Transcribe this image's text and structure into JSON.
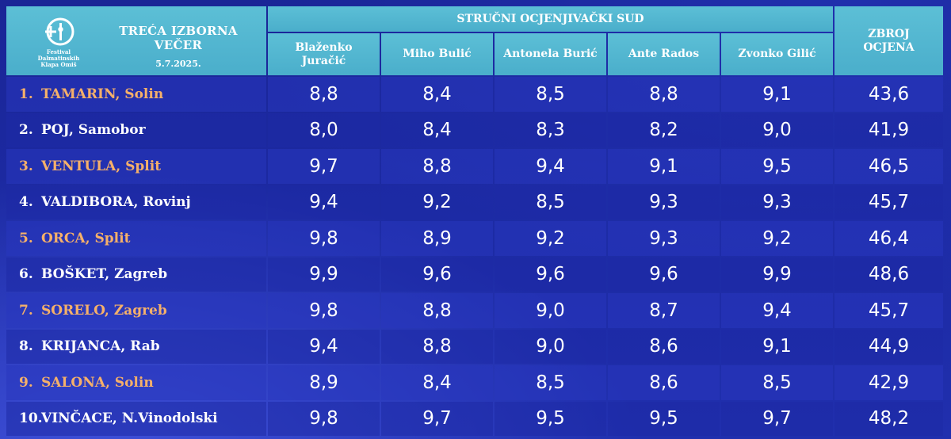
{
  "header": {
    "logo_text": [
      "Festival",
      "Dalmatinskih",
      "Klapa Omiš"
    ],
    "event_title": "TREĆA IZBORNA VEČER",
    "event_date": "5.7.2025.",
    "jury_label": "STRUČNI OCJENJIVAČKI SUD",
    "total_label": [
      "ZBROJ",
      "OCJENA"
    ],
    "judges": [
      [
        "Blaženko",
        "Juračić"
      ],
      [
        "Miho Bulić"
      ],
      [
        "Antonela Burić"
      ],
      [
        "Ante Rados"
      ],
      [
        "Zvonko Gilić"
      ]
    ]
  },
  "rows": [
    {
      "rank": "1.",
      "name": "TAMARIN, Solin",
      "scores": [
        "8,8",
        "8,4",
        "8,5",
        "8,8",
        "9,1"
      ],
      "total": "43,6"
    },
    {
      "rank": "2.",
      "name": "POJ, Samobor",
      "scores": [
        "8,0",
        "8,4",
        "8,3",
        "8,2",
        "9,0"
      ],
      "total": "41,9"
    },
    {
      "rank": "3.",
      "name": "VENTULA, Split",
      "scores": [
        "9,7",
        "8,8",
        "9,4",
        "9,1",
        "9,5"
      ],
      "total": "46,5"
    },
    {
      "rank": "4.",
      "name": "VALDIBORA, Rovinj",
      "scores": [
        "9,4",
        "9,2",
        "8,5",
        "9,3",
        "9,3"
      ],
      "total": "45,7"
    },
    {
      "rank": "5.",
      "name": "ORCA, Split",
      "scores": [
        "9,8",
        "8,9",
        "9,2",
        "9,3",
        "9,2"
      ],
      "total": "46,4"
    },
    {
      "rank": "6.",
      "name": "BOŠKET, Zagreb",
      "scores": [
        "9,9",
        "9,6",
        "9,6",
        "9,6",
        "9,9"
      ],
      "total": "48,6"
    },
    {
      "rank": "7.",
      "name": "SORELO, Zagreb",
      "scores": [
        "9,8",
        "8,8",
        "9,0",
        "8,7",
        "9,4"
      ],
      "total": "45,7"
    },
    {
      "rank": "8.",
      "name": "KRIJANCA, Rab",
      "scores": [
        "9,4",
        "8,8",
        "9,0",
        "8,6",
        "9,1"
      ],
      "total": "44,9"
    },
    {
      "rank": "9.",
      "name": "SALONA, Solin",
      "scores": [
        "8,9",
        "8,4",
        "8,5",
        "8,6",
        "8,5"
      ],
      "total": "42,9"
    },
    {
      "rank": "10.",
      "name": "VINČACE, N.Vinodolski",
      "scores": [
        "9,8",
        "9,7",
        "9,5",
        "9,5",
        "9,7"
      ],
      "total": "48,2"
    }
  ],
  "colors": {
    "header_bg": "#4aaecb",
    "highlight_name": "#f5b06a",
    "text": "#ffffff",
    "background": "#1a2596"
  }
}
